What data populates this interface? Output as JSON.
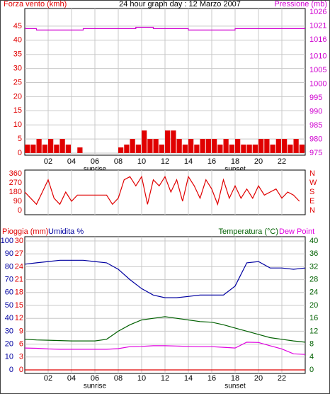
{
  "chart_data": [
    {
      "type": "bar",
      "title": "24 hour graph day : 12 Marzo 2007",
      "xlim": [
        0,
        24
      ],
      "xticks": [
        {
          "value": 2,
          "label": "02"
        },
        {
          "value": 4,
          "label": "04"
        },
        {
          "value": 6,
          "label": "06"
        },
        {
          "value": 8,
          "label": "08"
        },
        {
          "value": 10,
          "label": "10"
        },
        {
          "value": 12,
          "label": "12"
        },
        {
          "value": 14,
          "label": "14"
        },
        {
          "value": 16,
          "label": "16"
        },
        {
          "value": 18,
          "label": "18"
        },
        {
          "value": 20,
          "label": "20"
        },
        {
          "value": 22,
          "label": "22"
        }
      ],
      "annotations": [
        {
          "x": 6,
          "text": "sunrise"
        },
        {
          "x": 18,
          "text": "sunset"
        }
      ],
      "ylim": [
        0,
        50
      ],
      "yticks": [
        0,
        5,
        10,
        15,
        20,
        25,
        30,
        35,
        40,
        45
      ],
      "y2lim": [
        975,
        1026
      ],
      "y2ticks": [
        975,
        980,
        985,
        990,
        995,
        1000,
        1005,
        1010,
        1016,
        1021,
        1026
      ],
      "grid": true,
      "series": [
        {
          "name": "Forza vento (kmh)",
          "color": "#e00000",
          "axis": "y",
          "width": 0.5,
          "x": [
            0,
            0.5,
            1,
            1.5,
            2,
            2.5,
            3,
            3.5,
            4,
            4.5,
            5,
            5.5,
            6,
            6.5,
            7,
            7.5,
            8,
            8.5,
            9,
            9.5,
            10,
            10.5,
            11,
            11.5,
            12,
            12.5,
            13,
            13.5,
            14,
            14.5,
            15,
            15.5,
            16,
            16.5,
            17,
            17.5,
            18,
            18.5,
            19,
            19.5,
            20,
            20.5,
            21,
            21.5,
            22,
            22.5,
            23,
            23.5
          ],
          "values": [
            3,
            3,
            5,
            3,
            5,
            3,
            5,
            3,
            0,
            2,
            0,
            0,
            0,
            0,
            0,
            0,
            2,
            3,
            5,
            3,
            8,
            5,
            5,
            3,
            8,
            8,
            5,
            3,
            5,
            3,
            5,
            5,
            5,
            3,
            5,
            3,
            5,
            3,
            3,
            3,
            5,
            5,
            3,
            5,
            5,
            3,
            5,
            3
          ]
        },
        {
          "name": "Pressione (mb)",
          "color": "#d000d0",
          "axis": "y2",
          "type": "line",
          "x": [
            0,
            1,
            1,
            5,
            5,
            9.5,
            9.5,
            11,
            11,
            14,
            14,
            18,
            18,
            24
          ],
          "values": [
            1020,
            1020,
            1019.5,
            1019.5,
            1020,
            1020,
            1020.5,
            1020.5,
            1020,
            1020,
            1019.5,
            1019.5,
            1020,
            1020
          ]
        }
      ]
    },
    {
      "type": "line",
      "xlim": [
        0,
        24
      ],
      "ylim": [
        0,
        360
      ],
      "yticks": [
        0,
        90,
        180,
        270,
        360
      ],
      "y2lim": [
        0,
        360
      ],
      "y2ticks": [
        {
          "value": 0,
          "label": "N"
        },
        {
          "value": 90,
          "label": "E"
        },
        {
          "value": 180,
          "label": "S"
        },
        {
          "value": 270,
          "label": "W"
        },
        {
          "value": 360,
          "label": "N"
        }
      ],
      "series": [
        {
          "color": "#e00000",
          "axis": "y",
          "x": [
            0,
            0.5,
            1,
            1.5,
            2,
            2.5,
            3,
            3.5,
            4,
            4.5,
            5,
            5.5,
            6,
            6.5,
            7,
            7.5,
            8,
            8.5,
            9,
            9.5,
            10,
            10.5,
            11,
            11.5,
            12,
            12.5,
            13,
            13.5,
            14,
            14.5,
            15,
            15.5,
            16,
            16.5,
            17,
            17.5,
            18,
            18.5,
            19,
            19.5,
            20,
            20.5,
            21,
            21.5,
            22,
            22.5,
            23,
            23.5
          ],
          "values": [
            180,
            120,
            60,
            180,
            300,
            120,
            60,
            180,
            90,
            150,
            150,
            150,
            150,
            150,
            150,
            60,
            120,
            300,
            330,
            240,
            330,
            60,
            300,
            240,
            330,
            180,
            300,
            90,
            330,
            240,
            120,
            300,
            210,
            60,
            300,
            120,
            240,
            120,
            210,
            120,
            240,
            150,
            180,
            210,
            120,
            180,
            150,
            90
          ]
        }
      ]
    },
    {
      "type": "line",
      "xlim": [
        0,
        24
      ],
      "xticks": [
        {
          "value": 2,
          "label": "02"
        },
        {
          "value": 4,
          "label": "04"
        },
        {
          "value": 6,
          "label": "06"
        },
        {
          "value": 8,
          "label": "08"
        },
        {
          "value": 10,
          "label": "10"
        },
        {
          "value": 12,
          "label": "12"
        },
        {
          "value": 14,
          "label": "14"
        },
        {
          "value": 16,
          "label": "16"
        },
        {
          "value": 18,
          "label": "18"
        },
        {
          "value": 20,
          "label": "20"
        },
        {
          "value": 22,
          "label": "22"
        }
      ],
      "annotations": [
        {
          "x": 6,
          "text": "sunrise"
        },
        {
          "x": 18,
          "text": "sunset"
        }
      ],
      "ylim": [
        0,
        100
      ],
      "yticks": [
        0,
        10,
        20,
        30,
        40,
        50,
        60,
        70,
        80,
        90,
        100
      ],
      "y2lim": [
        0,
        40
      ],
      "y2ticks": [
        0,
        4,
        8,
        12,
        16,
        20,
        24,
        28,
        32,
        36,
        40
      ],
      "y3lim": [
        0,
        30
      ],
      "y3ticks": [
        0,
        3,
        6,
        9,
        12,
        15,
        18,
        21,
        24,
        27,
        30
      ],
      "grid": true,
      "x": [
        0,
        1,
        2,
        3,
        4,
        5,
        6,
        7,
        8,
        9,
        10,
        11,
        12,
        13,
        14,
        15,
        16,
        17,
        18,
        19,
        20,
        21,
        22,
        23,
        24
      ],
      "series": [
        {
          "name": "Pioggia (mm)",
          "color": "#e00000",
          "axis": "y3",
          "values": [
            0,
            0,
            0,
            0,
            0,
            0,
            0,
            0,
            0,
            0,
            0,
            0,
            0,
            0,
            0,
            0,
            0,
            0,
            0,
            0,
            0,
            0,
            0,
            0,
            0
          ]
        },
        {
          "name": "Umidita %",
          "color": "#0000a0",
          "axis": "y",
          "values": [
            82,
            83,
            84,
            85,
            85,
            85,
            84,
            83,
            78,
            70,
            63,
            58,
            56,
            56,
            57,
            58,
            58,
            58,
            65,
            83,
            84,
            79,
            79,
            78,
            79
          ]
        },
        {
          "name": "Temperatura (°C)",
          "color": "#006000",
          "axis": "y2",
          "values": [
            9.5,
            9.3,
            9.2,
            9.1,
            9,
            9,
            9,
            9.5,
            12,
            14,
            15.5,
            16,
            16.5,
            16,
            15.5,
            15,
            14.8,
            14,
            13,
            12,
            11,
            10,
            9.5,
            9,
            8.6
          ]
        },
        {
          "name": "Dew Point",
          "color": "#e000e0",
          "axis": "y2",
          "values": [
            6.8,
            6.7,
            6.5,
            6.4,
            6.4,
            6.4,
            6.4,
            6.4,
            6.6,
            7.2,
            7.3,
            7.5,
            7.5,
            7.4,
            7.3,
            7.2,
            7.2,
            7,
            6.8,
            8.6,
            8.5,
            7.5,
            6.5,
            5,
            4.8
          ]
        }
      ]
    }
  ]
}
